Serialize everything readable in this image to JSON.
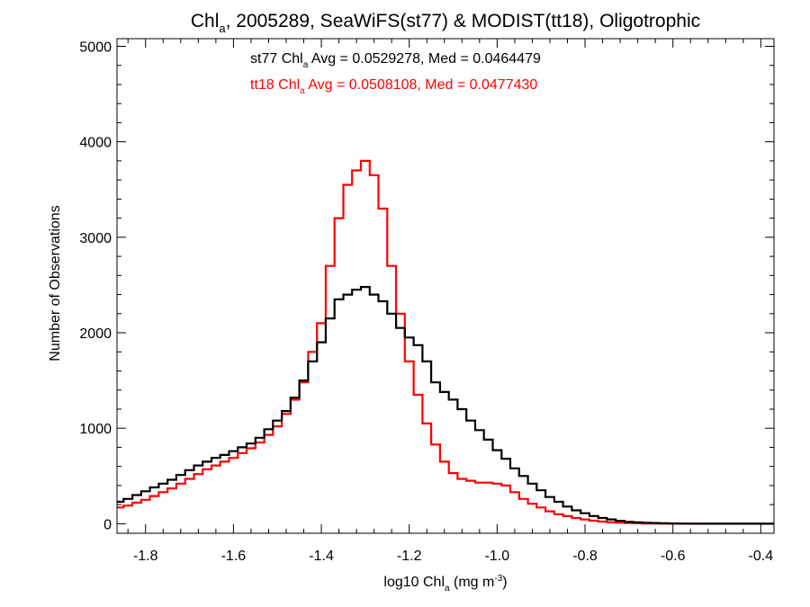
{
  "chart_data": {
    "type": "line",
    "title": {
      "pre": "Chl",
      "sub": "a",
      "post": ", 2005289, SeaWiFS(st77) & MODIST(tt18), Oligotrophic"
    },
    "xlabel": {
      "pre": "log10 Chl",
      "sub": "a",
      "mid": " (mg m",
      "sup": "-3",
      "post": ")"
    },
    "ylabel": "Number of Observations",
    "xlim": [
      -1.865,
      -0.37
    ],
    "ylim": [
      -100,
      5080
    ],
    "x_ticks": [
      -1.8,
      -1.6,
      -1.4,
      -1.2,
      -1.0,
      -0.8,
      -0.6,
      -0.4
    ],
    "x_tick_labels": [
      "-1.8",
      "-1.6",
      "-1.4",
      "-1.2",
      "-1.0",
      "-0.8",
      "-0.6",
      "-0.4"
    ],
    "y_ticks": [
      0,
      1000,
      2000,
      3000,
      4000,
      5000
    ],
    "y_tick_labels": [
      "0",
      "1000",
      "2000",
      "3000",
      "4000",
      "5000"
    ],
    "grid": false,
    "step_style": "histogram",
    "annotations": [
      {
        "series": "st77",
        "color": "#000000",
        "pre": "st77 Chl",
        "sub": "a",
        "post": " Avg = 0.0529278, Med = 0.0464479"
      },
      {
        "series": "tt18",
        "color": "#ff0000",
        "pre": "tt18 Chl",
        "sub": "a",
        "post": " Avg = 0.0508108, Med = 0.0477430"
      }
    ],
    "x": [
      -1.86,
      -1.84,
      -1.82,
      -1.8,
      -1.78,
      -1.76,
      -1.74,
      -1.72,
      -1.7,
      -1.68,
      -1.66,
      -1.64,
      -1.62,
      -1.6,
      -1.58,
      -1.56,
      -1.54,
      -1.52,
      -1.5,
      -1.48,
      -1.46,
      -1.44,
      -1.42,
      -1.4,
      -1.38,
      -1.36,
      -1.34,
      -1.32,
      -1.3,
      -1.28,
      -1.26,
      -1.24,
      -1.22,
      -1.2,
      -1.18,
      -1.16,
      -1.14,
      -1.12,
      -1.1,
      -1.08,
      -1.06,
      -1.04,
      -1.02,
      -1.0,
      -0.98,
      -0.96,
      -0.94,
      -0.92,
      -0.9,
      -0.88,
      -0.86,
      -0.84,
      -0.82,
      -0.8,
      -0.78,
      -0.76,
      -0.74,
      -0.72,
      -0.7,
      -0.68,
      -0.66,
      -0.64,
      -0.62,
      -0.6,
      -0.58,
      -0.56,
      -0.54,
      -0.52,
      -0.5,
      -0.48,
      -0.46,
      -0.44,
      -0.42,
      -0.4,
      -0.38
    ],
    "series": [
      {
        "name": "st77",
        "color": "#000000",
        "values": [
          230,
          260,
          300,
          340,
          380,
          420,
          460,
          510,
          560,
          610,
          650,
          690,
          720,
          760,
          800,
          840,
          900,
          990,
          1080,
          1180,
          1320,
          1500,
          1700,
          1900,
          2150,
          2350,
          2400,
          2450,
          2480,
          2400,
          2330,
          2200,
          2050,
          1950,
          1870,
          1700,
          1480,
          1380,
          1300,
          1200,
          1080,
          980,
          880,
          770,
          680,
          580,
          500,
          420,
          350,
          280,
          230,
          180,
          140,
          110,
          80,
          60,
          45,
          30,
          20,
          14,
          10,
          7,
          5,
          3,
          2,
          1,
          1,
          0,
          0,
          0,
          0,
          0,
          0,
          0,
          0
        ]
      },
      {
        "name": "tt18",
        "color": "#ff0000",
        "values": [
          170,
          190,
          220,
          250,
          290,
          330,
          370,
          420,
          470,
          520,
          570,
          610,
          650,
          690,
          740,
          790,
          850,
          930,
          1020,
          1150,
          1300,
          1480,
          1800,
          2100,
          2700,
          3200,
          3550,
          3700,
          3800,
          3650,
          3300,
          2700,
          2200,
          1700,
          1350,
          1050,
          830,
          650,
          530,
          470,
          450,
          430,
          430,
          420,
          400,
          330,
          260,
          210,
          170,
          130,
          100,
          80,
          60,
          45,
          32,
          22,
          15,
          10,
          7,
          5,
          3,
          2,
          1,
          1,
          0,
          0,
          0,
          0,
          0,
          0,
          0,
          0,
          0,
          0,
          0
        ]
      }
    ]
  }
}
